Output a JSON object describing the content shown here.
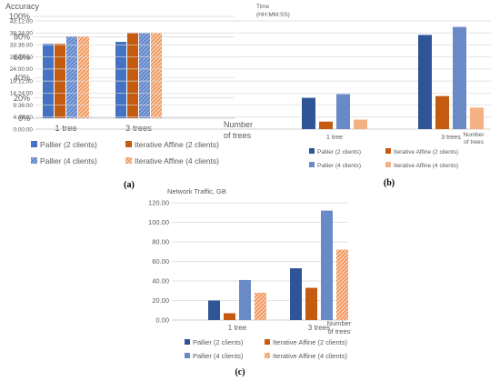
{
  "chart_data": [
    {
      "type": "bar",
      "title": "Accuracy",
      "xlabel": "Number of trees",
      "ylabel": "",
      "categories": [
        "1 tree",
        "3 trees"
      ],
      "yticks": [
        "0%",
        "20%",
        "40%",
        "60%",
        "80%",
        "100%"
      ],
      "ylim": [
        0,
        100
      ],
      "grid": true,
      "legend": "bottom",
      "series": [
        {
          "name": "Pallier (2 clients)",
          "values": [
            73,
            75
          ],
          "color": "#4472C4",
          "pattern": "solid"
        },
        {
          "name": "Iterative Affine  (2 clients)",
          "values": [
            73,
            84
          ],
          "color": "#C55A11",
          "pattern": "solid"
        },
        {
          "name": "Pallier (4 clients)",
          "values": [
            80,
            84
          ],
          "color": "#4472C4",
          "pattern": "hatch"
        },
        {
          "name": "Iterative Affine (4 clients)",
          "values": [
            80,
            84
          ],
          "color": "#ED7D31",
          "pattern": "hatch"
        }
      ],
      "caption": "(a)"
    },
    {
      "type": "bar",
      "title": "Time (HH:MM:SS)",
      "title_lines": [
        "Time",
        "(HH:MM:SS)"
      ],
      "xlabel": "Number of trees",
      "xlabel_lines": [
        "Number",
        "of trees"
      ],
      "categories": [
        "1 tree",
        "3 trees"
      ],
      "yticks": [
        "0:00:00",
        "4:48:00",
        "9:36:00",
        "14:24:00",
        "19:12:00",
        "24:00:00",
        "28:48:00",
        "33:36:00",
        "38:24:00",
        "43:12:00"
      ],
      "ylim_hours": [
        0,
        43.2
      ],
      "values_unit": "hours",
      "grid": true,
      "legend": "bottom",
      "series": [
        {
          "name": "Pallier (2 clients)",
          "values": [
            12.5,
            37.6
          ],
          "color": "#2F5597"
        },
        {
          "name": "Iterative Affine  (2 clients)",
          "values": [
            3.0,
            13.2
          ],
          "color": "#C55A11"
        },
        {
          "name": "Pallier (4 clients)",
          "values": [
            14.0,
            40.8
          ],
          "color": "#6A8AC7"
        },
        {
          "name": "Iterative Affine (4 clients)",
          "values": [
            3.8,
            8.6
          ],
          "color": "#F4B183"
        }
      ],
      "caption": "(b)"
    },
    {
      "type": "bar",
      "title": "Network Traffic, GB",
      "xlabel": "Number of trees",
      "xlabel_lines": [
        "Number",
        "of trees"
      ],
      "categories": [
        "1 tree",
        "3 trees"
      ],
      "yticks": [
        "0.00",
        "20.00",
        "40.00",
        "60.00",
        "80.00",
        "100.00",
        "120.00"
      ],
      "ylim": [
        0,
        120
      ],
      "grid": true,
      "legend": "bottom",
      "series": [
        {
          "name": "Pallier (2 clients)",
          "values": [
            20,
            53
          ],
          "color": "#2F5597",
          "pattern": "solid"
        },
        {
          "name": "Iterative Affine  (2 clients)",
          "values": [
            7,
            33
          ],
          "color": "#C55A11",
          "pattern": "solid"
        },
        {
          "name": "Pallier (4 clients)",
          "values": [
            41,
            112
          ],
          "color": "#6A8AC7",
          "pattern": "solid"
        },
        {
          "name": "Iterative Affine (4 clients)",
          "values": [
            28,
            72
          ],
          "color": "#ED7D31",
          "pattern": "hatch"
        }
      ],
      "caption": "(c)"
    }
  ]
}
